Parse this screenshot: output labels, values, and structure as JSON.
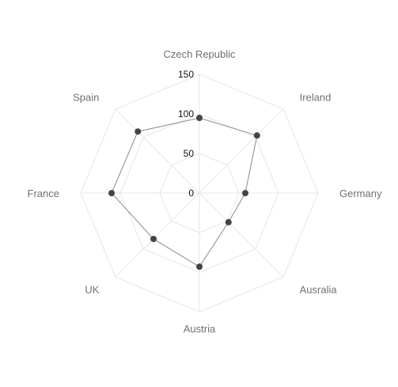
{
  "chart_data": {
    "type": "radar",
    "categories": [
      "Czech Republic",
      "Ireland",
      "Germany",
      "Ausralia",
      "Austria",
      "UK",
      "France",
      "Spain"
    ],
    "values": [
      95,
      103,
      58,
      52,
      93,
      82,
      111,
      110
    ],
    "ticks": [
      "0",
      "50",
      "100",
      "150"
    ],
    "tick_values": [
      0,
      50,
      100,
      150
    ],
    "r_range": [
      0,
      150
    ],
    "grid": true,
    "legend": "none",
    "colors": {
      "grid": "#e6e6e6",
      "series_line": "#8a8a8a",
      "series_point": "#444444",
      "axis_label": "#6f6f79",
      "tick_label": "#111111"
    }
  }
}
